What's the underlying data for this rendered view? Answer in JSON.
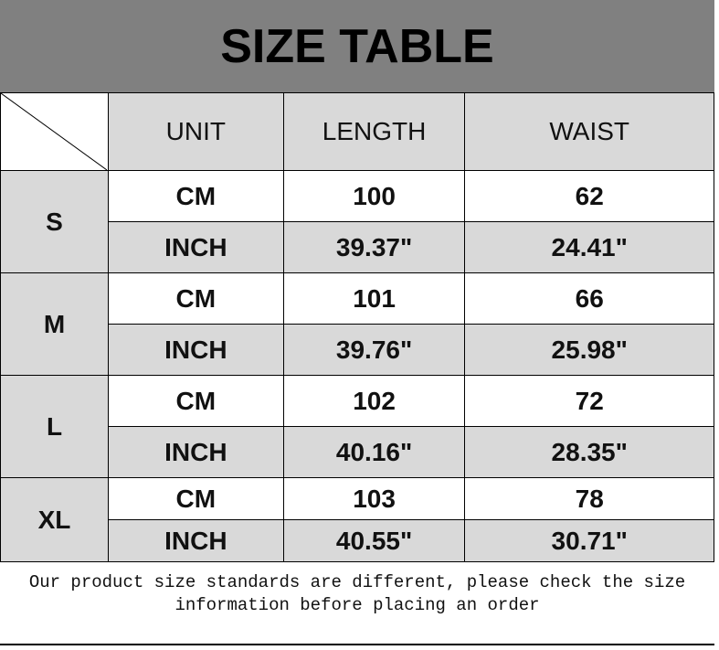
{
  "title": "SIZE TABLE",
  "headers": [
    "UNIT",
    "LENGTH",
    "WAIST"
  ],
  "rows": [
    {
      "size": "S",
      "cm": {
        "unit": "CM",
        "length": "100",
        "waist": "62"
      },
      "inch": {
        "unit": "INCH",
        "length": "39.37\"",
        "waist": "24.41\""
      }
    },
    {
      "size": "M",
      "cm": {
        "unit": "CM",
        "length": "101",
        "waist": "66"
      },
      "inch": {
        "unit": "INCH",
        "length": "39.76\"",
        "waist": "25.98\""
      }
    },
    {
      "size": "L",
      "cm": {
        "unit": "CM",
        "length": "102",
        "waist": "72"
      },
      "inch": {
        "unit": "INCH",
        "length": "40.16\"",
        "waist": "28.35\""
      }
    },
    {
      "size": "XL",
      "cm": {
        "unit": "CM",
        "length": "103",
        "waist": "78"
      },
      "inch": {
        "unit": "INCH",
        "length": "40.55\"",
        "waist": "30.71\""
      }
    }
  ],
  "note": "Our product size standards are different, please check the size information before placing an order"
}
